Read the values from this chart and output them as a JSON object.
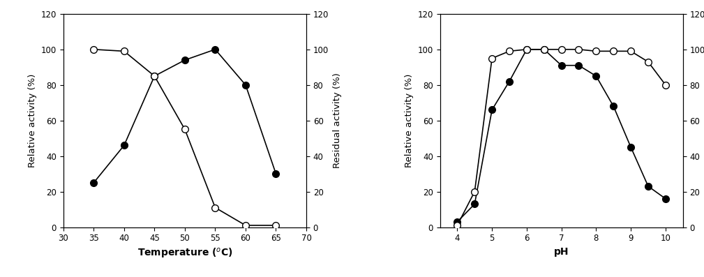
{
  "temp_activity_x": [
    35,
    40,
    45,
    50,
    55,
    60,
    65
  ],
  "temp_activity_y": [
    25,
    46,
    85,
    94,
    100,
    80,
    30
  ],
  "temp_stability_x": [
    35,
    40,
    45,
    50,
    55,
    60,
    65
  ],
  "temp_stability_y": [
    100,
    99,
    85,
    55,
    11,
    1,
    1
  ],
  "ph_activity_x": [
    4.0,
    4.5,
    5.0,
    5.5,
    6.0,
    6.5,
    7.0,
    7.5,
    8.0,
    8.5,
    9.0,
    9.5,
    10.0
  ],
  "ph_activity_y": [
    3,
    13,
    66,
    82,
    100,
    100,
    91,
    91,
    85,
    68,
    45,
    23,
    16
  ],
  "ph_stability_x": [
    4.0,
    4.5,
    5.0,
    5.5,
    6.0,
    6.5,
    7.0,
    7.5,
    8.0,
    8.5,
    9.0,
    9.5,
    10.0
  ],
  "ph_stability_y": [
    1,
    20,
    95,
    99,
    100,
    100,
    100,
    100,
    99,
    99,
    99,
    93,
    80
  ],
  "temp_xlim": [
    30,
    70
  ],
  "temp_xticks": [
    30,
    35,
    40,
    45,
    50,
    55,
    60,
    65,
    70
  ],
  "ph_xlim": [
    3.5,
    10.5
  ],
  "ph_xticks": [
    4,
    5,
    6,
    7,
    8,
    9,
    10
  ],
  "ylim": [
    0,
    120
  ],
  "yticks": [
    0,
    20,
    40,
    60,
    80,
    100,
    120
  ],
  "temp_xlabel": "Temperature ($^o$C)",
  "ph_xlabel": "pH",
  "ylabel_left": "Relative activity (%)",
  "ylabel_right": "Residual activity (%)",
  "line_color": "#000000",
  "marker_size": 7,
  "linewidth": 1.2,
  "bg_color": "#ffffff"
}
